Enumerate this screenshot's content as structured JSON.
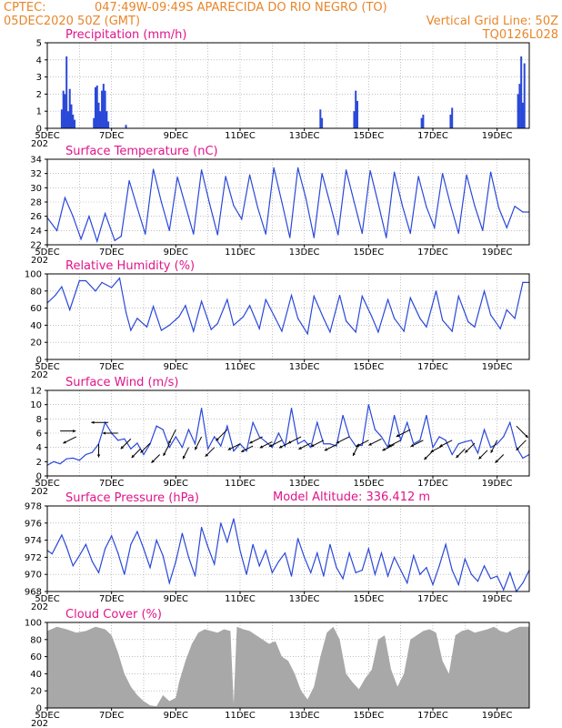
{
  "header": {
    "line1_left": "CPTEC:",
    "line1_center": "047:49W-09:49S  APARECIDA DO RIO NEGRO (TO)",
    "line2_left": "05DEC2020 50Z (GMT)",
    "line2_right": "Vertical Grid Line: 50Z",
    "line3_right": "TQ0126L028",
    "model_altitude": "Model Altitude: 336.412 m"
  },
  "colors": {
    "header": "#e8862a",
    "title": "#e0158a",
    "series": "#2a48d8",
    "cloud": "#a8a8a8",
    "grid": "#999999",
    "wind_arrow": "#000000"
  },
  "x_axis": {
    "start_day": 5,
    "end_day": 20,
    "tick_days": [
      5,
      7,
      9,
      11,
      13,
      15,
      17,
      19
    ],
    "tick_labels": [
      "5DEC",
      "7DEC",
      "9DEC",
      "11DEC",
      "13DEC",
      "15DEC",
      "17DEC",
      "19DEC"
    ],
    "year_fragment": "202"
  },
  "chart_data": [
    {
      "type": "bar",
      "title": "Precipitation (mm/h)",
      "ylim": [
        0,
        5
      ],
      "yticks": [
        0,
        1,
        2,
        3,
        4,
        5
      ],
      "grid": true,
      "x": [
        5.45,
        5.5,
        5.55,
        5.6,
        5.65,
        5.7,
        5.75,
        5.8,
        5.85,
        6.45,
        6.5,
        6.55,
        6.6,
        6.65,
        6.7,
        6.75,
        6.8,
        6.85,
        6.9,
        7.45,
        13.5,
        13.55,
        14.55,
        14.6,
        14.65,
        16.65,
        16.7,
        17.55,
        17.6,
        19.65,
        19.7,
        19.75,
        19.8,
        19.85
      ],
      "values": [
        1.1,
        2.2,
        2.0,
        4.2,
        1.0,
        2.3,
        1.4,
        0.8,
        0.5,
        0.6,
        2.4,
        2.5,
        1.5,
        1.0,
        2.2,
        2.6,
        2.2,
        1.0,
        0.4,
        0.2,
        1.1,
        0.6,
        1.0,
        2.2,
        1.6,
        0.6,
        0.8,
        0.8,
        1.2,
        2.0,
        2.6,
        4.2,
        1.5,
        3.8
      ]
    },
    {
      "type": "line",
      "title": "Surface Temperature (nC)",
      "ylim": [
        22,
        34
      ],
      "yticks": [
        22,
        24,
        26,
        28,
        30,
        32,
        34
      ],
      "grid": true,
      "x": [
        5.0,
        5.3,
        5.55,
        5.8,
        6.05,
        6.3,
        6.55,
        6.8,
        7.1,
        7.3,
        7.55,
        7.8,
        8.05,
        8.3,
        8.55,
        8.8,
        9.05,
        9.3,
        9.55,
        9.8,
        10.05,
        10.3,
        10.55,
        10.8,
        11.05,
        11.3,
        11.55,
        11.8,
        12.05,
        12.3,
        12.55,
        12.8,
        13.05,
        13.3,
        13.55,
        13.8,
        14.05,
        14.3,
        14.55,
        14.8,
        15.05,
        15.3,
        15.55,
        15.8,
        16.05,
        16.3,
        16.55,
        16.8,
        17.05,
        17.3,
        17.55,
        17.8,
        18.05,
        18.3,
        18.55,
        18.8,
        19.05,
        19.3,
        19.55,
        19.8,
        20.0
      ],
      "values": [
        25.8,
        24.0,
        28.6,
        26.0,
        22.8,
        26.0,
        22.5,
        26.4,
        22.6,
        23.2,
        31.0,
        27.2,
        23.5,
        32.6,
        28.0,
        24.0,
        31.5,
        27.5,
        23.5,
        32.5,
        27.8,
        23.4,
        31.6,
        27.5,
        25.6,
        31.8,
        27.2,
        23.5,
        32.8,
        28.0,
        23.0,
        32.8,
        28.5,
        23.0,
        32.0,
        27.8,
        23.4,
        32.5,
        28.0,
        23.6,
        32.4,
        27.8,
        23.0,
        32.2,
        27.5,
        23.6,
        31.6,
        27.3,
        24.4,
        32.0,
        27.6,
        23.6,
        31.8,
        27.5,
        24.0,
        32.2,
        27.2,
        24.4,
        27.4,
        26.6,
        26.6
      ]
    },
    {
      "type": "line",
      "title": "Relative Humidity (%)",
      "ylim": [
        0,
        100
      ],
      "yticks": [
        0,
        20,
        40,
        60,
        80,
        100
      ],
      "grid": true,
      "x": [
        5.0,
        5.25,
        5.45,
        5.7,
        6.0,
        6.2,
        6.5,
        6.7,
        7.0,
        7.25,
        7.45,
        7.6,
        7.8,
        8.1,
        8.3,
        8.55,
        8.8,
        9.1,
        9.3,
        9.55,
        9.8,
        10.1,
        10.3,
        10.6,
        10.8,
        11.1,
        11.3,
        11.6,
        11.8,
        12.1,
        12.3,
        12.6,
        12.8,
        13.1,
        13.3,
        13.6,
        13.8,
        14.1,
        14.3,
        14.6,
        14.8,
        15.1,
        15.3,
        15.6,
        15.8,
        16.1,
        16.3,
        16.6,
        16.8,
        17.1,
        17.3,
        17.6,
        17.8,
        18.1,
        18.3,
        18.6,
        18.8,
        19.1,
        19.3,
        19.55,
        19.8,
        20.0
      ],
      "values": [
        66,
        75,
        85,
        58,
        92,
        92,
        80,
        90,
        84,
        95,
        55,
        34,
        48,
        38,
        62,
        34,
        40,
        50,
        63,
        33,
        68,
        35,
        42,
        70,
        40,
        50,
        63,
        36,
        70,
        48,
        33,
        75,
        48,
        30,
        74,
        48,
        32,
        75,
        45,
        32,
        74,
        50,
        32,
        70,
        48,
        33,
        72,
        48,
        38,
        80,
        46,
        33,
        74,
        44,
        38,
        80,
        52,
        36,
        58,
        48,
        90,
        90
      ]
    },
    {
      "type": "line",
      "title": "Surface Wind (m/s)",
      "ylim": [
        0,
        12
      ],
      "yticks": [
        0,
        2,
        4,
        6,
        8,
        10,
        12
      ],
      "grid": true,
      "x": [
        5.0,
        5.2,
        5.4,
        5.6,
        5.8,
        6.0,
        6.2,
        6.4,
        6.6,
        6.8,
        7.0,
        7.2,
        7.4,
        7.6,
        7.8,
        8.0,
        8.2,
        8.4,
        8.6,
        8.8,
        9.0,
        9.2,
        9.4,
        9.6,
        9.8,
        10.0,
        10.2,
        10.4,
        10.6,
        10.8,
        11.0,
        11.2,
        11.4,
        11.6,
        11.8,
        12.0,
        12.2,
        12.4,
        12.6,
        12.8,
        13.0,
        13.2,
        13.4,
        13.6,
        13.8,
        14.0,
        14.2,
        14.4,
        14.6,
        14.8,
        15.0,
        15.2,
        15.4,
        15.6,
        15.8,
        16.0,
        16.2,
        16.4,
        16.6,
        16.8,
        17.0,
        17.2,
        17.4,
        17.6,
        17.8,
        18.0,
        18.2,
        18.4,
        18.6,
        18.8,
        19.0,
        19.2,
        19.4,
        19.6,
        19.8,
        20.0
      ],
      "values": [
        1.5,
        2.0,
        1.7,
        2.4,
        2.5,
        2.2,
        3.0,
        3.3,
        4.5,
        7.5,
        6.0,
        5.0,
        5.2,
        3.8,
        4.6,
        3.0,
        4.5,
        7.0,
        6.5,
        4.0,
        5.5,
        4.0,
        6.5,
        4.5,
        9.5,
        3.8,
        5.5,
        4.2,
        7.0,
        3.5,
        4.5,
        3.5,
        7.5,
        5.5,
        4.8,
        4.0,
        6.0,
        4.2,
        9.5,
        4.5,
        5.0,
        4.0,
        7.5,
        4.5,
        4.5,
        4.2,
        8.5,
        5.5,
        4.2,
        4.3,
        10.0,
        6.5,
        5.5,
        4.0,
        8.5,
        5.0,
        7.5,
        4.5,
        5.0,
        8.5,
        4.0,
        5.5,
        5.0,
        3.0,
        4.5,
        4.8,
        5.0,
        3.2,
        6.5,
        4.0,
        4.5,
        5.5,
        7.5,
        4.0,
        2.5,
        3.0
      ]
    },
    {
      "type": "line",
      "title": "Surface Pressure (hPa)",
      "ylim": [
        968,
        978
      ],
      "yticks": [
        968,
        970,
        972,
        974,
        976,
        978
      ],
      "grid": true,
      "x": [
        5.0,
        5.15,
        5.3,
        5.45,
        5.6,
        5.8,
        6.0,
        6.2,
        6.4,
        6.6,
        6.8,
        7.0,
        7.2,
        7.4,
        7.6,
        7.8,
        8.0,
        8.2,
        8.4,
        8.6,
        8.8,
        9.0,
        9.2,
        9.4,
        9.6,
        9.8,
        10.0,
        10.2,
        10.4,
        10.6,
        10.8,
        11.0,
        11.2,
        11.4,
        11.6,
        11.8,
        12.0,
        12.2,
        12.4,
        12.6,
        12.8,
        13.0,
        13.2,
        13.4,
        13.6,
        13.8,
        14.0,
        14.2,
        14.4,
        14.6,
        14.8,
        15.0,
        15.2,
        15.4,
        15.6,
        15.8,
        16.0,
        16.2,
        16.4,
        16.6,
        16.8,
        17.0,
        17.2,
        17.4,
        17.6,
        17.8,
        18.0,
        18.2,
        18.4,
        18.6,
        18.8,
        19.0,
        19.2,
        19.4,
        19.6,
        19.8,
        20.0
      ],
      "values": [
        972.8,
        972.4,
        973.5,
        974.6,
        973.2,
        971.0,
        972.2,
        973.5,
        971.5,
        970.2,
        973.0,
        974.5,
        972.5,
        970.0,
        973.5,
        975.0,
        973.0,
        970.8,
        974.0,
        972.2,
        969.0,
        971.5,
        974.8,
        972.0,
        969.8,
        975.5,
        973.2,
        971.2,
        976.0,
        973.8,
        976.5,
        972.8,
        970.0,
        973.5,
        971.0,
        972.8,
        970.2,
        971.5,
        972.5,
        969.8,
        974.2,
        972.0,
        970.2,
        972.5,
        969.8,
        973.5,
        970.8,
        969.5,
        972.5,
        970.2,
        970.5,
        973.0,
        970.0,
        972.5,
        969.8,
        972.0,
        970.5,
        969.0,
        972.2,
        970.0,
        970.8,
        968.8,
        971.0,
        973.5,
        970.5,
        968.8,
        971.8,
        970.0,
        969.2,
        971.0,
        969.5,
        969.8,
        968.2,
        970.2,
        968.0,
        969.0,
        970.5
      ]
    },
    {
      "type": "area",
      "title": "Cloud Cover (%)",
      "ylim": [
        0,
        100
      ],
      "yticks": [
        0,
        20,
        40,
        60,
        80,
        100
      ],
      "grid": true,
      "x": [
        5.0,
        5.3,
        5.6,
        5.9,
        6.2,
        6.5,
        6.8,
        7.0,
        7.2,
        7.4,
        7.6,
        7.8,
        8.0,
        8.2,
        8.4,
        8.6,
        8.8,
        9.0,
        9.1,
        9.3,
        9.5,
        9.7,
        9.9,
        10.1,
        10.3,
        10.5,
        10.7,
        10.8,
        10.9,
        11.1,
        11.3,
        11.5,
        11.7,
        11.9,
        12.1,
        12.3,
        12.5,
        12.7,
        12.9,
        13.1,
        13.3,
        13.5,
        13.7,
        13.9,
        14.1,
        14.3,
        14.5,
        14.7,
        14.9,
        15.1,
        15.3,
        15.5,
        15.7,
        15.9,
        16.1,
        16.3,
        16.5,
        16.7,
        16.9,
        17.1,
        17.3,
        17.5,
        17.7,
        17.9,
        18.1,
        18.3,
        18.5,
        18.7,
        18.9,
        19.1,
        19.3,
        19.5,
        19.7,
        20.0
      ],
      "values": [
        90,
        95,
        92,
        88,
        90,
        95,
        92,
        85,
        65,
        40,
        25,
        15,
        8,
        3,
        2,
        15,
        8,
        12,
        30,
        55,
        75,
        88,
        92,
        90,
        88,
        92,
        90,
        5,
        95,
        92,
        90,
        85,
        80,
        75,
        78,
        60,
        55,
        40,
        20,
        10,
        25,
        60,
        88,
        95,
        80,
        40,
        30,
        22,
        35,
        45,
        80,
        85,
        45,
        25,
        40,
        80,
        85,
        90,
        92,
        88,
        55,
        40,
        85,
        90,
        92,
        88,
        90,
        92,
        95,
        90,
        88,
        92,
        95,
        95
      ]
    }
  ],
  "wind_vectors": {
    "x": [
      5.4,
      5.9,
      6.6,
      6.9,
      7.2,
      7.6,
      7.9,
      8.2,
      8.5,
      8.8,
      9.0,
      9.4,
      9.8,
      10.2,
      10.6,
      11.0,
      11.4,
      11.7,
      12.0,
      12.3,
      12.6,
      12.9,
      13.2,
      13.6,
      14.0,
      14.4,
      14.7,
      15.0,
      15.4,
      15.8,
      16.0,
      16.3,
      16.7,
      17.0,
      17.3,
      17.6,
      18.0,
      18.3,
      18.7,
      19.0,
      19.2,
      19.6,
      19.9
    ],
    "speed": [
      6.3,
      5.5,
      4.5,
      7.5,
      6.0,
      5.2,
      3.8,
      4.6,
      3.0,
      4.5,
      6.5,
      4.0,
      5.5,
      4.0,
      6.5,
      4.5,
      4.2,
      5.5,
      4.8,
      5.0,
      4.8,
      5.5,
      4.6,
      5.0,
      4.4,
      5.5,
      4.5,
      5.0,
      5.2,
      4.4,
      5.0,
      6.5,
      5.0,
      3.5,
      4.2,
      5.0,
      3.8,
      4.6,
      3.6,
      5.0,
      3.0,
      7.0,
      5.0
    ],
    "u": [
      1,
      -2,
      0,
      -2,
      -2,
      -1,
      -1,
      -1,
      -1,
      -1,
      -1,
      -1,
      -1,
      -1,
      -1,
      -2,
      -2,
      -2,
      -2,
      -2,
      -2,
      -2,
      -2,
      -2,
      -2,
      -2,
      -1,
      -2,
      -2,
      -2,
      -2,
      -2,
      -2,
      -1,
      -2,
      -2,
      -1,
      -1,
      -1,
      -1,
      -1,
      1,
      -1
    ],
    "v": [
      0,
      -1,
      -2,
      0,
      0,
      -1,
      -1,
      -1,
      -1,
      -2,
      -2,
      -2,
      -2,
      -1,
      -1,
      -1,
      -1,
      -1,
      -1,
      -1,
      -1,
      -1,
      -1,
      -1,
      -1,
      -1,
      -2,
      -1,
      -1,
      -1,
      -1,
      -1,
      -1,
      -1,
      -1,
      -1,
      -1,
      -1,
      -1,
      -2,
      -1,
      -1,
      -1
    ]
  }
}
